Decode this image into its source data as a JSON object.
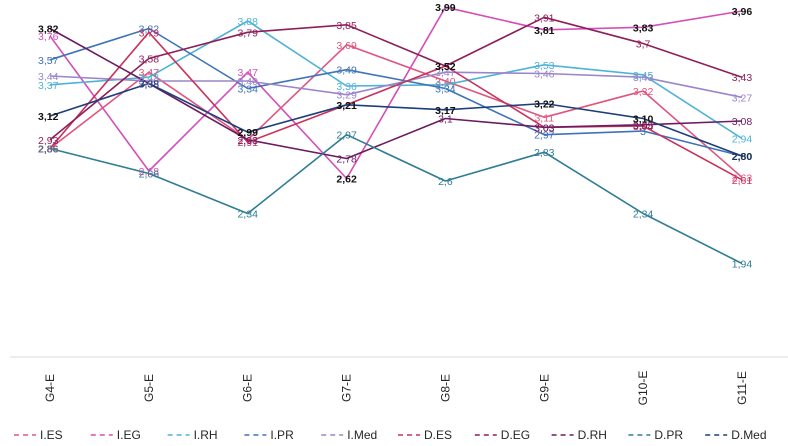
{
  "chart_data": {
    "type": "line",
    "categories": [
      "G4-E",
      "G5-E",
      "G6-E",
      "G7-E",
      "G8-E",
      "G9-E",
      "G10-E",
      "G11-E"
    ],
    "ylim": [
      1.6,
      4.0
    ],
    "grid": false,
    "legend_position": "bottom",
    "series": [
      {
        "name": "I.ES",
        "color": "#e0557e",
        "values": [
          2.86,
          3.47,
          2.93,
          3.69,
          3.4,
          3.11,
          3.32,
          2.63
        ]
      },
      {
        "name": "I.EG",
        "color": "#d44fb8",
        "values": [
          3.76,
          2.68,
          3.47,
          2.62,
          3.99,
          3.81,
          3.83,
          3.96
        ]
      },
      {
        "name": "I.RH",
        "color": "#4fb3d6",
        "values": [
          3.37,
          3.43,
          3.88,
          3.36,
          3.37,
          3.53,
          3.45,
          2.94
        ]
      },
      {
        "name": "I.PR",
        "color": "#3f73b8",
        "values": [
          3.57,
          3.82,
          3.34,
          3.49,
          3.34,
          2.97,
          3.0,
          2.8
        ]
      },
      {
        "name": "I.Med",
        "color": "#9b86c9",
        "values": [
          3.44,
          3.4,
          3.4,
          3.29,
          3.47,
          3.46,
          3.43,
          3.27
        ]
      },
      {
        "name": "D.ES",
        "color": "#c8325b",
        "values": [
          2.86,
          3.79,
          2.91,
          3.21,
          3.52,
          3.03,
          3.04,
          2.61
        ]
      },
      {
        "name": "D.EG",
        "color": "#8e1f5a",
        "values": [
          2.93,
          3.58,
          3.79,
          3.85,
          3.52,
          3.91,
          3.7,
          3.43
        ]
      },
      {
        "name": "D.RH",
        "color": "#6a1b63",
        "values": [
          3.82,
          3.38,
          2.93,
          2.78,
          3.1,
          3.03,
          3.05,
          3.08
        ]
      },
      {
        "name": "D.PR",
        "color": "#2f7d95",
        "values": [
          2.86,
          2.66,
          2.34,
          2.97,
          2.6,
          2.83,
          2.34,
          1.94
        ]
      },
      {
        "name": "D.Med",
        "color": "#1d3f7a",
        "values": [
          3.12,
          3.38,
          2.99,
          3.21,
          3.17,
          3.22,
          3.1,
          2.8
        ]
      }
    ],
    "data_labels": [
      [
        {
          "text": "2,86",
          "color": "#e0557e",
          "bold": true
        },
        {
          "text": "3,47",
          "color": "#e0557e",
          "bold": false
        },
        {
          "text": "2,93",
          "color": "#e0557e",
          "bold": false
        },
        {
          "text": "3,69",
          "color": "#e0557e",
          "bold": false
        },
        {
          "text": "3,40",
          "color": "#e0557e",
          "bold": false
        },
        {
          "text": "3,11",
          "color": "#e0557e",
          "bold": false
        },
        {
          "text": "3,32",
          "color": "#e0557e",
          "bold": false
        },
        {
          "text": "2,63",
          "color": "#e0557e",
          "bold": false
        }
      ],
      [
        {
          "text": "3,76",
          "color": "#d44fb8",
          "bold": false
        },
        {
          "text": "2,68",
          "color": "#d44fb8",
          "bold": false
        },
        {
          "text": "3,47",
          "color": "#d44fb8",
          "bold": false
        },
        {
          "text": "2,62",
          "color": "#111111",
          "bold": true
        },
        {
          "text": "3,99",
          "color": "#111111",
          "bold": true
        },
        {
          "text": "3,81",
          "color": "#111111",
          "bold": true
        },
        {
          "text": "3,83",
          "color": "#111111",
          "bold": true
        },
        {
          "text": "3,96",
          "color": "#111111",
          "bold": true
        }
      ],
      [
        {
          "text": "3,37",
          "color": "#4fb3d6",
          "bold": false
        },
        {
          "text": "3,43",
          "color": "#4fb3d6",
          "bold": false
        },
        {
          "text": "3,88",
          "color": "#4fb3d6",
          "bold": false
        },
        {
          "text": "3,36",
          "color": "#4fb3d6",
          "bold": false
        },
        {
          "text": "3,37",
          "color": "#4fb3d6",
          "bold": false
        },
        {
          "text": "3,53",
          "color": "#4fb3d6",
          "bold": false
        },
        {
          "text": "3,45",
          "color": "#4fb3d6",
          "bold": false
        },
        {
          "text": "2,94",
          "color": "#4fb3d6",
          "bold": false
        }
      ],
      [
        {
          "text": "3,57",
          "color": "#3f73b8",
          "bold": false
        },
        {
          "text": "3,82",
          "color": "#3f73b8",
          "bold": false
        },
        {
          "text": "3,34",
          "color": "#3f73b8",
          "bold": false
        },
        {
          "text": "3,49",
          "color": "#3f73b8",
          "bold": false
        },
        {
          "text": "3,34",
          "color": "#3f73b8",
          "bold": false
        },
        {
          "text": "2,97",
          "color": "#3f73b8",
          "bold": false
        },
        {
          "text": "3",
          "color": "#3f73b8",
          "bold": false
        },
        {
          "text": "2,80",
          "color": "#111111",
          "bold": true
        }
      ],
      [
        {
          "text": "3,44",
          "color": "#9b86c9",
          "bold": false
        },
        {
          "text": "3,40",
          "color": "#9b86c9",
          "bold": false
        },
        {
          "text": "3,40",
          "color": "#9b86c9",
          "bold": false
        },
        {
          "text": "3,29",
          "color": "#9b86c9",
          "bold": false
        },
        {
          "text": "3,47",
          "color": "#9b86c9",
          "bold": false
        },
        {
          "text": "3,46",
          "color": "#9b86c9",
          "bold": false
        },
        {
          "text": "3,43",
          "color": "#9b86c9",
          "bold": false
        },
        {
          "text": "3,27",
          "color": "#9b86c9",
          "bold": false
        }
      ],
      [
        {
          "text": "2,86",
          "color": "#c8325b",
          "bold": false
        },
        {
          "text": "3,79",
          "color": "#c8325b",
          "bold": false
        },
        {
          "text": "2,91",
          "color": "#c8325b",
          "bold": false
        },
        {
          "text": "3,21",
          "color": "#c8325b",
          "bold": false
        },
        {
          "text": "3,52",
          "color": "#c8325b",
          "bold": false
        },
        {
          "text": "3,03",
          "color": "#c8325b",
          "bold": false
        },
        {
          "text": "3,04",
          "color": "#c8325b",
          "bold": false
        },
        {
          "text": "2,61",
          "color": "#c8325b",
          "bold": false
        }
      ],
      [
        {
          "text": "2,93",
          "color": "#8e1f5a",
          "bold": false
        },
        {
          "text": "3,58",
          "color": "#8e1f5a",
          "bold": false
        },
        {
          "text": "3,79",
          "color": "#8e1f5a",
          "bold": false
        },
        {
          "text": "3,85",
          "color": "#8e1f5a",
          "bold": false
        },
        {
          "text": "3,52",
          "color": "#111111",
          "bold": true
        },
        {
          "text": "3,91",
          "color": "#8e1f5a",
          "bold": false
        },
        {
          "text": "3,7",
          "color": "#8e1f5a",
          "bold": false
        },
        {
          "text": "3,43",
          "color": "#8e1f5a",
          "bold": false
        }
      ],
      [
        {
          "text": "3,82",
          "color": "#111111",
          "bold": true
        },
        {
          "text": "3,38",
          "color": "#6a1b63",
          "bold": false
        },
        {
          "text": "2,93",
          "color": "#6a1b63",
          "bold": false
        },
        {
          "text": "2,78",
          "color": "#6a1b63",
          "bold": false
        },
        {
          "text": "3,1",
          "color": "#6a1b63",
          "bold": false
        },
        {
          "text": "3,03",
          "color": "#6a1b63",
          "bold": false
        },
        {
          "text": "3,05",
          "color": "#6a1b63",
          "bold": false
        },
        {
          "text": "3,08",
          "color": "#6a1b63",
          "bold": false
        }
      ],
      [
        {
          "text": "2,86",
          "color": "#2f7d95",
          "bold": false
        },
        {
          "text": "2,66",
          "color": "#2f7d95",
          "bold": false
        },
        {
          "text": "2,34",
          "color": "#2f7d95",
          "bold": false
        },
        {
          "text": "2,97",
          "color": "#2f7d95",
          "bold": false
        },
        {
          "text": "2,6",
          "color": "#2f7d95",
          "bold": false
        },
        {
          "text": "2,83",
          "color": "#2f7d95",
          "bold": false
        },
        {
          "text": "2,34",
          "color": "#2f7d95",
          "bold": false
        },
        {
          "text": "1,94",
          "color": "#2f7d95",
          "bold": false
        }
      ],
      [
        {
          "text": "3,12",
          "color": "#111111",
          "bold": true
        },
        {
          "text": "3,38",
          "color": "#1d3f7a",
          "bold": false
        },
        {
          "text": "2,99",
          "color": "#111111",
          "bold": true
        },
        {
          "text": "3,21",
          "color": "#111111",
          "bold": true
        },
        {
          "text": "3,17",
          "color": "#111111",
          "bold": true
        },
        {
          "text": "3,22",
          "color": "#111111",
          "bold": true
        },
        {
          "text": "3,10",
          "color": "#111111",
          "bold": true
        },
        {
          "text": "2,80",
          "color": "#1d3f7a",
          "bold": false
        }
      ]
    ]
  }
}
